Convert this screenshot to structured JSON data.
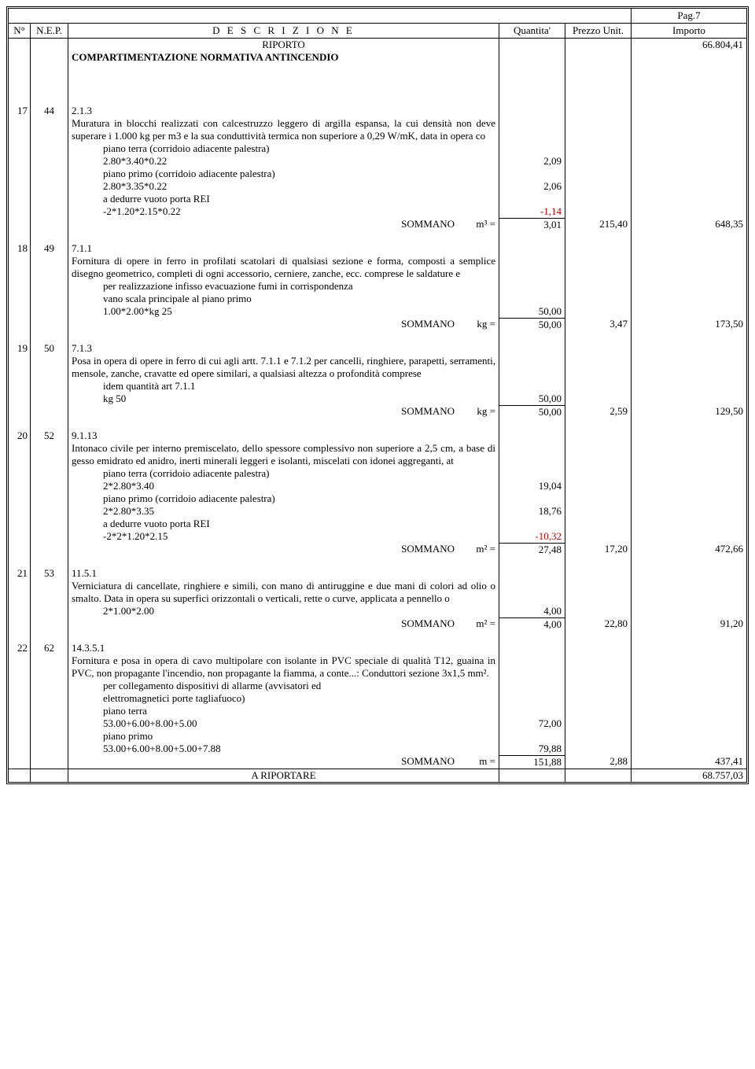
{
  "page_label": "Pag.7",
  "header": {
    "n": "N°",
    "nep": "N.E.P.",
    "desc": "D E S C R I Z I O N E",
    "qty": "Quantita'",
    "price": "Prezzo Unit.",
    "imp": "Importo"
  },
  "riporto": "RIPORTO",
  "riporto_val": "66.804,41",
  "section": "COMPARTIMENTAZIONE NORMATIVA ANTINCENDIO",
  "rows": [
    {
      "n": "17",
      "nep": "44",
      "code": "2.1.3",
      "desc": "Muratura in blocchi realizzati con calcestruzzo leggero di argilla espansa, la cui densità non deve superare i 1.000 kg per m3 e la sua conduttività termica non superiore a 0,29 W/mK, data in opera co",
      "lines": [
        {
          "t": "piano terra (corridoio adiacente palestra)",
          "indent": true
        },
        {
          "t": "2.80*3.40*0.22",
          "indent": true,
          "q": "2,09"
        },
        {
          "t": "piano primo (corridoio adiacente palestra)",
          "indent": true
        },
        {
          "t": "2.80*3.35*0.22",
          "indent": true,
          "q": "2,06"
        },
        {
          "t": "a dedurre vuoto porta REI",
          "indent": true
        },
        {
          "t": "-2*1.20*2.15*0.22",
          "indent": true,
          "q": "-1,14",
          "neg": true
        }
      ],
      "sum_label": "SOMMANO",
      "sum_unit": "m³ =",
      "sum_qty": "3,01",
      "sum_price": "215,40",
      "sum_imp": "648,35"
    },
    {
      "n": "18",
      "nep": "49",
      "code": "7.1.1",
      "desc": "Fornitura di opere in ferro in profilati scatolari di qualsiasi sezione e forma, composti a semplice disegno geometrico, completi di ogni accessorio, cerniere, zanche, ecc. comprese le saldature e",
      "lines": [
        {
          "t": "per realizzazione infisso evacuazione fumi in corrispondenza",
          "indent": true
        },
        {
          "t": "vano scala principale al piano primo",
          "indent": true
        },
        {
          "t": "1.00*2.00*kg 25",
          "indent": true,
          "q": "50,00"
        }
      ],
      "sum_label": "SOMMANO",
      "sum_unit": "kg =",
      "sum_qty": "50,00",
      "sum_price": "3,47",
      "sum_imp": "173,50"
    },
    {
      "n": "19",
      "nep": "50",
      "code": "7.1.3",
      "desc": "Posa in opera di opere in ferro di cui agli artt. 7.1.1 e 7.1.2 per cancelli, ringhiere, parapetti, serramenti, mensole, zanche, cravatte ed opere similari, a qualsiasi altezza o profondità comprese",
      "lines": [
        {
          "t": "idem quantità art 7.1.1",
          "indent": true
        },
        {
          "t": "kg 50",
          "indent": true,
          "q": "50,00"
        }
      ],
      "sum_label": "SOMMANO",
      "sum_unit": "kg =",
      "sum_qty": "50,00",
      "sum_price": "2,59",
      "sum_imp": "129,50"
    },
    {
      "n": "20",
      "nep": "52",
      "code": "9.1.13",
      "desc": "Intonaco civile per interno premiscelato, dello spessore complessivo non superiore a 2,5 cm, a base di gesso emidrato ed anidro, inerti minerali leggeri e isolanti, miscelati con idonei aggreganti, at",
      "lines": [
        {
          "t": "piano terra (corridoio adiacente palestra)",
          "indent": true
        },
        {
          "t": "2*2.80*3.40",
          "indent": true,
          "q": "19,04"
        },
        {
          "t": "piano primo (corridoio adiacente palestra)",
          "indent": true
        },
        {
          "t": "2*2.80*3.35",
          "indent": true,
          "q": "18,76"
        },
        {
          "t": "a dedurre vuoto porta REI",
          "indent": true
        },
        {
          "t": "-2*2*1.20*2.15",
          "indent": true,
          "q": "-10,32",
          "neg": true
        }
      ],
      "sum_label": "SOMMANO",
      "sum_unit": "m² =",
      "sum_qty": "27,48",
      "sum_price": "17,20",
      "sum_imp": "472,66"
    },
    {
      "n": "21",
      "nep": "53",
      "code": "11.5.1",
      "desc": "Verniciatura di cancellate, ringhiere e simili, con mano di antiruggine e due mani di colori ad olio o smalto. Data in opera su superfici orizzontali o verticali, rette o curve, applicata a pennello o",
      "lines": [
        {
          "t": "2*1.00*2.00",
          "indent": true,
          "q": "4,00"
        }
      ],
      "sum_label": "SOMMANO",
      "sum_unit": "m² =",
      "sum_qty": "4,00",
      "sum_price": "22,80",
      "sum_imp": "91,20"
    },
    {
      "n": "22",
      "nep": "62",
      "code": "14.3.5.1",
      "desc": "Fornitura e posa in opera di cavo multipolare con isolante in PVC speciale di qualità T12, guaina in PVC, non propagante l'incendio, non propagante la fiamma, a conte...: Conduttori sezione 3x1,5 mm².",
      "lines": [
        {
          "t": "per collegamento dispositivi di allarme (avvisatori ed",
          "indent": true
        },
        {
          "t": "elettromagnetici porte tagliafuoco)",
          "indent": true
        },
        {
          "t": "piano terra",
          "indent": true
        },
        {
          "t": "53.00+6.00+8.00+5.00",
          "indent": true,
          "q": "72,00"
        },
        {
          "t": "piano primo",
          "indent": true
        },
        {
          "t": "53.00+6.00+8.00+5.00+7.88",
          "indent": true,
          "q": "79,88"
        }
      ],
      "sum_label": "SOMMANO",
      "sum_unit": "m =",
      "sum_qty": "151,88",
      "sum_price": "2,88",
      "sum_imp": "437,41"
    }
  ],
  "a_riportare": "A RIPORTARE",
  "a_riportare_val": "68.757,03"
}
